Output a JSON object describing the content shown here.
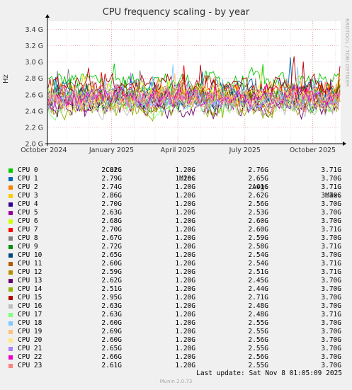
{
  "title": "CPU frequency scaling - by year",
  "watermark": "RRDTOOL / TOBI OETIKER",
  "footer": {
    "last_update": "Last update: Sat Nov  8 01:05:09 2025",
    "version": "Munin 2.0.73"
  },
  "legend_headers": {
    "cur": "Cur:",
    "min": "Min:",
    "avg": "Avg:",
    "max": "Max:"
  },
  "chart_data": {
    "type": "line",
    "ylabel": "Hz",
    "ylim": [
      2.0,
      3.5
    ],
    "yticks": [
      {
        "v": 2.0,
        "label": "2.0 G"
      },
      {
        "v": 2.2,
        "label": "2.2 G"
      },
      {
        "v": 2.4,
        "label": "2.4 G"
      },
      {
        "v": 2.6,
        "label": "2.6 G"
      },
      {
        "v": 2.8,
        "label": "2.8 G"
      },
      {
        "v": 3.0,
        "label": "3.0 G"
      },
      {
        "v": 3.2,
        "label": "3.2 G"
      },
      {
        "v": 3.4,
        "label": "3.4 G"
      }
    ],
    "xrange": [
      "2024-10-06",
      "2025-11-08"
    ],
    "xticks": [
      {
        "date": "2024-10-01",
        "label": "October 2024"
      },
      {
        "date": "2025-01-01",
        "label": "January 2025"
      },
      {
        "date": "2025-04-01",
        "label": "April 2025"
      },
      {
        "date": "2025-07-01",
        "label": "July 2025"
      },
      {
        "date": "2025-10-01",
        "label": "October 2025"
      }
    ],
    "grid": true,
    "legend_position": "bottom",
    "series": [
      {
        "name": "CPU 0",
        "color": "#00cc00",
        "cur": "2.82G",
        "min": "1.20G",
        "avg": "2.76G",
        "max": "3.71G",
        "avg_v": 2.76
      },
      {
        "name": "CPU 1",
        "color": "#0066b3",
        "cur": "2.79G",
        "min": "1.20G",
        "avg": "2.65G",
        "max": "3.70G",
        "avg_v": 2.65
      },
      {
        "name": "CPU 2",
        "color": "#ff8000",
        "cur": "2.74G",
        "min": "1.20G",
        "avg": "2.61G",
        "max": "3.71G",
        "avg_v": 2.61
      },
      {
        "name": "CPU 3",
        "color": "#ffcc00",
        "cur": "2.86G",
        "min": "1.20G",
        "avg": "2.62G",
        "max": "3.70G",
        "avg_v": 2.62
      },
      {
        "name": "CPU 4",
        "color": "#330099",
        "cur": "2.70G",
        "min": "1.20G",
        "avg": "2.56G",
        "max": "3.70G",
        "avg_v": 2.56
      },
      {
        "name": "CPU 5",
        "color": "#990099",
        "cur": "2.63G",
        "min": "1.20G",
        "avg": "2.53G",
        "max": "3.70G",
        "avg_v": 2.53
      },
      {
        "name": "CPU 6",
        "color": "#ccff00",
        "cur": "2.68G",
        "min": "1.20G",
        "avg": "2.60G",
        "max": "3.70G",
        "avg_v": 2.6
      },
      {
        "name": "CPU 7",
        "color": "#ff0000",
        "cur": "2.70G",
        "min": "1.20G",
        "avg": "2.60G",
        "max": "3.71G",
        "avg_v": 2.6
      },
      {
        "name": "CPU 8",
        "color": "#808080",
        "cur": "2.67G",
        "min": "1.20G",
        "avg": "2.59G",
        "max": "3.70G",
        "avg_v": 2.59
      },
      {
        "name": "CPU 9",
        "color": "#008f00",
        "cur": "2.72G",
        "min": "1.20G",
        "avg": "2.58G",
        "max": "3.71G",
        "avg_v": 2.58
      },
      {
        "name": "CPU 10",
        "color": "#00487d",
        "cur": "2.65G",
        "min": "1.20G",
        "avg": "2.54G",
        "max": "3.70G",
        "avg_v": 2.54
      },
      {
        "name": "CPU 11",
        "color": "#b35a00",
        "cur": "2.60G",
        "min": "1.20G",
        "avg": "2.54G",
        "max": "3.71G",
        "avg_v": 2.54
      },
      {
        "name": "CPU 12",
        "color": "#b38f00",
        "cur": "2.59G",
        "min": "1.20G",
        "avg": "2.51G",
        "max": "3.71G",
        "avg_v": 2.51
      },
      {
        "name": "CPU 13",
        "color": "#6b006b",
        "cur": "2.62G",
        "min": "1.20G",
        "avg": "2.45G",
        "max": "3.70G",
        "avg_v": 2.45
      },
      {
        "name": "CPU 14",
        "color": "#8fb300",
        "cur": "2.51G",
        "min": "1.20G",
        "avg": "2.44G",
        "max": "3.70G",
        "avg_v": 2.44
      },
      {
        "name": "CPU 15",
        "color": "#b30000",
        "cur": "2.95G",
        "min": "1.20G",
        "avg": "2.71G",
        "max": "3.70G",
        "avg_v": 2.71
      },
      {
        "name": "CPU 16",
        "color": "#bebebe",
        "cur": "2.63G",
        "min": "1.20G",
        "avg": "2.48G",
        "max": "3.70G",
        "avg_v": 2.48
      },
      {
        "name": "CPU 17",
        "color": "#80ff80",
        "cur": "2.63G",
        "min": "1.20G",
        "avg": "2.48G",
        "max": "3.71G",
        "avg_v": 2.48
      },
      {
        "name": "CPU 18",
        "color": "#80c9ff",
        "cur": "2.60G",
        "min": "1.20G",
        "avg": "2.55G",
        "max": "3.70G",
        "avg_v": 2.55
      },
      {
        "name": "CPU 19",
        "color": "#ffc080",
        "cur": "2.69G",
        "min": "1.20G",
        "avg": "2.55G",
        "max": "3.70G",
        "avg_v": 2.55
      },
      {
        "name": "CPU 20",
        "color": "#ffe680",
        "cur": "2.60G",
        "min": "1.20G",
        "avg": "2.56G",
        "max": "3.70G",
        "avg_v": 2.56
      },
      {
        "name": "CPU 21",
        "color": "#aa80ff",
        "cur": "2.65G",
        "min": "1.20G",
        "avg": "2.55G",
        "max": "3.70G",
        "avg_v": 2.55
      },
      {
        "name": "CPU 22",
        "color": "#ee00cc",
        "cur": "2.66G",
        "min": "1.20G",
        "avg": "2.56G",
        "max": "3.70G",
        "avg_v": 2.56
      },
      {
        "name": "CPU 23",
        "color": "#ff8080",
        "cur": "2.61G",
        "min": "1.20G",
        "avg": "2.55G",
        "max": "3.70G",
        "avg_v": 2.55
      }
    ]
  }
}
